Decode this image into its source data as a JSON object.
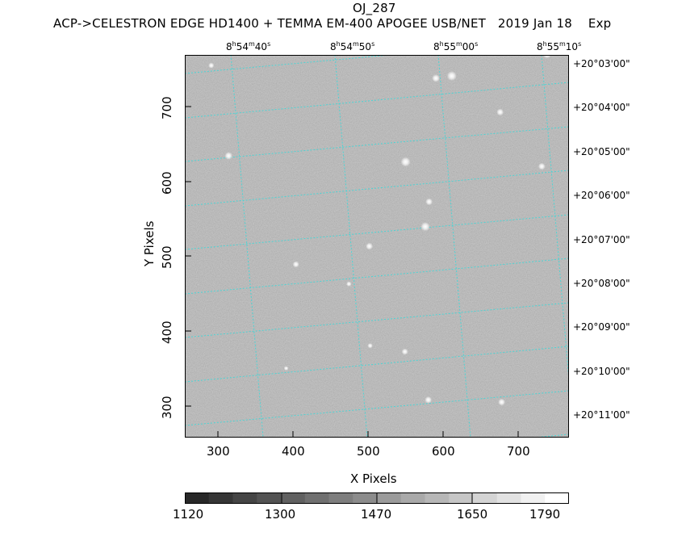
{
  "title": "OJ_287",
  "subtitle": "ACP->CELESTRON EDGE HD1400 + TEMMA EM-400 APOGEE USB/NET   2019 Jan 18    Exp",
  "chart_data": {
    "type": "heatmap",
    "xlabel": "X Pixels",
    "ylabel": "Y Pixels",
    "xlim": [
      258,
      766
    ],
    "ylim": [
      258,
      766
    ],
    "x_ticks": [
      "300",
      "400",
      "500",
      "600",
      "700"
    ],
    "y_ticks": [
      "300",
      "400",
      "500",
      "600",
      "700"
    ],
    "ra_labels": [
      {
        "h": "8",
        "m": "54",
        "s": "40"
      },
      {
        "h": "8",
        "m": "54",
        "s": "50"
      },
      {
        "h": "8",
        "m": "55",
        "s": "00"
      },
      {
        "h": "8",
        "m": "55",
        "s": "10"
      }
    ],
    "dec_labels": [
      "+20°03'00\"",
      "+20°04'00\"",
      "+20°05'00\"",
      "+20°06'00\"",
      "+20°07'00\"",
      "+20°08'00\"",
      "+20°09'00\"",
      "+20°10'00\"",
      "+20°11'00\""
    ],
    "colorbar": {
      "min": 1120,
      "max": 1790,
      "ticks": [
        "1120",
        "1300",
        "1470",
        "1650",
        "1790"
      ]
    },
    "stars": [
      {
        "x": 293,
        "y": 752,
        "mag": 0.4
      },
      {
        "x": 316,
        "y": 632,
        "mag": 0.7
      },
      {
        "x": 405,
        "y": 488,
        "mag": 0.5
      },
      {
        "x": 475,
        "y": 462,
        "mag": 0.3
      },
      {
        "x": 502,
        "y": 512,
        "mag": 0.6
      },
      {
        "x": 550,
        "y": 624,
        "mag": 1.0
      },
      {
        "x": 576,
        "y": 538,
        "mag": 0.9
      },
      {
        "x": 581,
        "y": 571,
        "mag": 0.6
      },
      {
        "x": 590,
        "y": 735,
        "mag": 0.7
      },
      {
        "x": 611,
        "y": 738,
        "mag": 1.0
      },
      {
        "x": 675,
        "y": 690,
        "mag": 0.6
      },
      {
        "x": 730,
        "y": 618,
        "mag": 0.6
      },
      {
        "x": 737,
        "y": 767,
        "mag": 0.8
      },
      {
        "x": 503,
        "y": 380,
        "mag": 0.3
      },
      {
        "x": 549,
        "y": 372,
        "mag": 0.5
      },
      {
        "x": 580,
        "y": 308,
        "mag": 0.6
      },
      {
        "x": 677,
        "y": 305,
        "mag": 0.6
      },
      {
        "x": 392,
        "y": 350,
        "mag": 0.2
      }
    ]
  },
  "colors": {
    "background": "#ffffff",
    "grid": "#3fd8d8",
    "image_bg": "#8a8a8a"
  }
}
